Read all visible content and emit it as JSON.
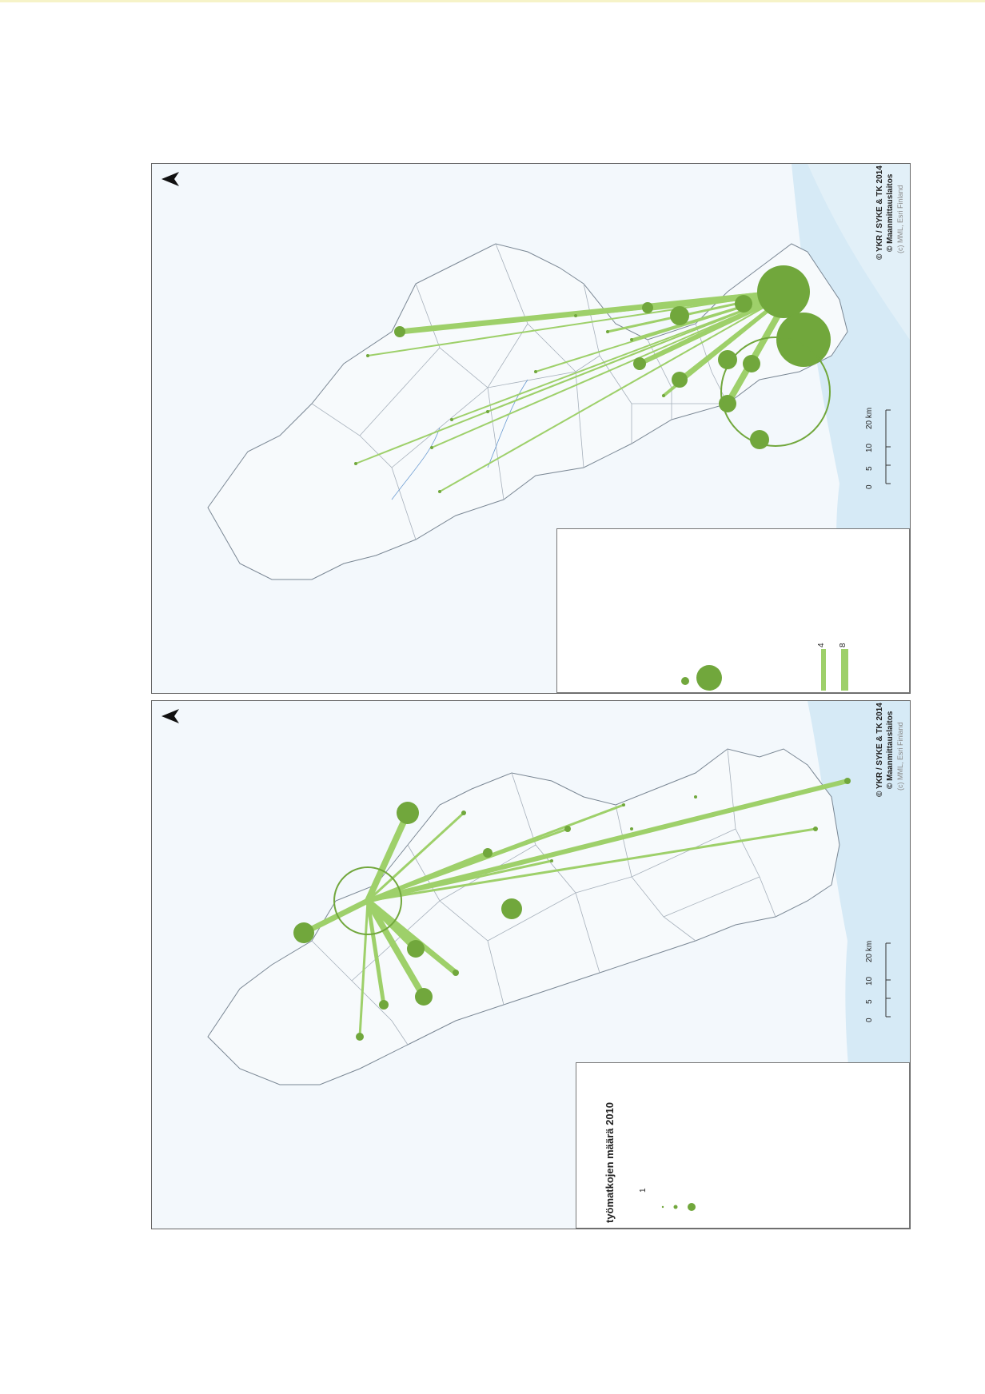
{
  "credits": {
    "line1": "© YKR / SYKE & TK 2014",
    "line2": "© Maanmittauslaitos",
    "line3": "(c) MML, Esri Finland"
  },
  "scalebar": {
    "ticks": [
      "0",
      "5",
      "10",
      "20 km"
    ]
  },
  "north_label": "N",
  "legend_top": {
    "line_labels": [
      "4",
      "8"
    ]
  },
  "legend_bottom": {
    "title": "työmatkojen määrä 2010",
    "first_label": "1"
  },
  "colors": {
    "accent_green": "#71a73c",
    "line_green": "#9ed06a",
    "sea": "#d6eaf6",
    "border": "#9aa6b2"
  },
  "icons": {
    "north_arrow": "north-arrow-icon"
  }
}
